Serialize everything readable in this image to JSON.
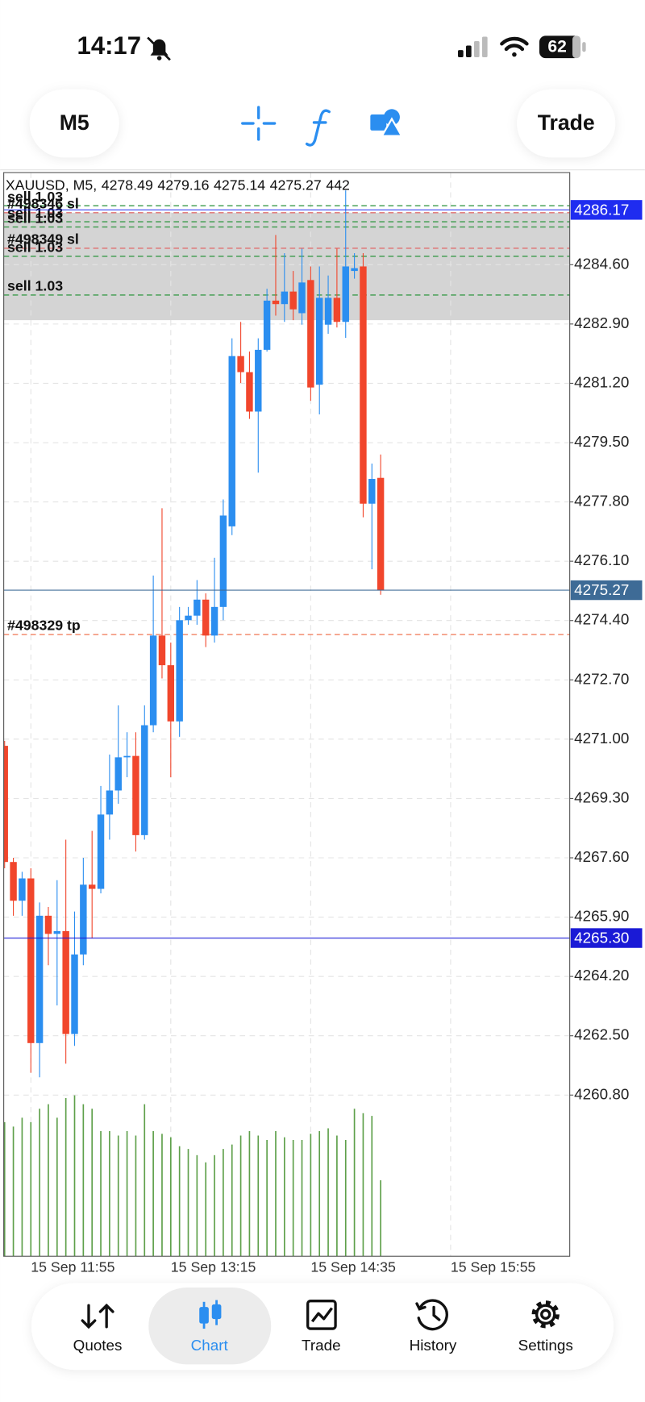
{
  "status_bar": {
    "time": "14:17",
    "battery": "62"
  },
  "toolbar": {
    "timeframe": "M5",
    "trade_button": "Trade"
  },
  "chart_data": {
    "type": "candlestick",
    "symbol": "XAUUSD, M5,",
    "categories": [
      null,
      null,
      null,
      "15 Sep 11:55",
      null,
      null,
      null,
      null,
      null,
      null,
      null,
      null,
      null,
      null,
      null,
      null,
      null,
      null,
      null,
      "15 Sep 13:15",
      null,
      null,
      null,
      null,
      null,
      null,
      null,
      null,
      null,
      null,
      null,
      null,
      null,
      null,
      null,
      "15 Sep 14:35",
      null,
      null,
      null,
      null,
      null,
      null,
      null,
      null,
      null,
      null,
      null,
      null,
      null,
      null,
      null,
      "15 Sep 15:55"
    ],
    "open": [
      4270.81,
      4267.48,
      4266.37,
      4267.01,
      4262.29,
      4265.94,
      4265.42,
      4265.5,
      4262.55,
      4264.83,
      4266.83,
      4266.71,
      4268.84,
      4269.53,
      4270.48,
      4270.52,
      4268.25,
      4271.4,
      4273.97,
      4273.12,
      4271.51,
      4274.41,
      4274.54,
      4275.0,
      4273.97,
      4274.79,
      4277.1,
      4281.98,
      4281.52,
      4280.39,
      4282.16,
      4283.57,
      4283.47,
      4283.83,
      4283.21,
      4284.16,
      4281.16,
      4282.88,
      4283.65,
      4282.96,
      4284.42,
      4284.55,
      4277.75,
      4278.49,
      null,
      null,
      null,
      null,
      null,
      null,
      null,
      null
    ],
    "high": [
      4270.95,
      4267.6,
      4267.2,
      4267.3,
      4266.32,
      4266.19,
      4266.96,
      4268.12,
      4266.06,
      4267.6,
      4268.37,
      4269.66,
      4270.56,
      4271.97,
      4271.2,
      4271.2,
      4271.97,
      4275.69,
      4277.62,
      4273.77,
      4274.79,
      4274.79,
      4275.56,
      4275.18,
      4276.2,
      4277.87,
      4282.49,
      4282.96,
      4282.11,
      4282.49,
      4283.91,
      4285.45,
      4284.93,
      4284.42,
      4285.06,
      4284.55,
      4284.55,
      4284.29,
      4285.06,
      4286.73,
      4284.93,
      4284.93,
      4278.9,
      4279.16,
      null,
      null,
      null,
      null,
      null,
      null,
      null,
      null
    ],
    "low": [
      4267.3,
      4265.94,
      4265.94,
      4261.44,
      4261.31,
      4264.52,
      4263.37,
      4261.7,
      4262.21,
      4264.52,
      4265.29,
      4266.58,
      4268.12,
      4269.15,
      4269.91,
      4267.78,
      4268.12,
      4271.2,
      4272.74,
      4269.91,
      4271.07,
      4274.28,
      4274.28,
      4273.64,
      4273.77,
      4274.41,
      4276.85,
      4281.21,
      4280.18,
      4278.64,
      4282.11,
      4283.14,
      4282.96,
      4283.01,
      4282.88,
      4280.7,
      4280.31,
      4282.62,
      4282.8,
      4282.5,
      4284.2,
      4277.36,
      4275.87,
      4275.14,
      null,
      null,
      null,
      null,
      null,
      null,
      null,
      null
    ],
    "close": [
      4267.48,
      4266.37,
      4267.01,
      4262.29,
      4265.94,
      4265.42,
      4265.5,
      4262.55,
      4264.83,
      4266.83,
      4266.71,
      4268.84,
      4269.53,
      4270.48,
      4270.52,
      4268.25,
      4271.4,
      4273.97,
      4273.12,
      4271.51,
      4274.41,
      4274.54,
      4275.0,
      4273.97,
      4274.79,
      4277.41,
      4281.98,
      4281.52,
      4280.39,
      4282.16,
      4283.57,
      4283.47,
      4283.83,
      4283.32,
      4284.09,
      4281.08,
      4283.65,
      4283.65,
      4282.96,
      4284.55,
      4284.5,
      4277.75,
      4278.46,
      4275.27,
      null,
      null,
      null,
      null,
      null,
      null,
      null,
      null
    ],
    "volume": [
      780,
      754,
      806,
      780,
      858,
      884,
      806,
      920,
      936,
      884,
      858,
      728,
      728,
      702,
      728,
      702,
      884,
      728,
      712,
      692,
      640,
      624,
      588,
      546,
      588,
      624,
      650,
      702,
      728,
      702,
      676,
      728,
      692,
      676,
      676,
      712,
      728,
      744,
      702,
      676,
      858,
      832,
      816,
      442,
      null,
      null,
      null,
      null,
      null,
      null,
      null,
      null
    ],
    "up_color": "#2b8ef0",
    "down_color": "#f1462c",
    "volume_color": "#5ea04a",
    "ylim": [
      4256.18,
      4287.24
    ],
    "yticks": [
      {
        "value": 4260.8,
        "label": "4260.80"
      },
      {
        "value": 4262.5,
        "label": "4262.50"
      },
      {
        "value": 4264.2,
        "label": "4264.20"
      },
      {
        "value": 4265.9,
        "label": "4265.90"
      },
      {
        "value": 4267.6,
        "label": "4267.60"
      },
      {
        "value": 4269.3,
        "label": "4269.30"
      },
      {
        "value": 4271.0,
        "label": "4271.00"
      },
      {
        "value": 4272.7,
        "label": "4272.70"
      },
      {
        "value": 4274.4,
        "label": "4274.40"
      },
      {
        "value": 4276.1,
        "label": "4276.10"
      },
      {
        "value": 4277.8,
        "label": "4277.80"
      },
      {
        "value": 4279.5,
        "label": "4279.50"
      },
      {
        "value": 4281.2,
        "label": "4281.20"
      },
      {
        "value": 4282.9,
        "label": "4282.90"
      },
      {
        "value": 4284.6,
        "label": "4284.60"
      }
    ],
    "grid": true,
    "zones": [
      {
        "from": 4283.01,
        "to": 4286.09,
        "color": "#d4d4d4"
      }
    ],
    "order_lines": [
      {
        "label": "sell 1.03",
        "value": 4286.29,
        "color": "#3a9a4a"
      },
      {
        "label": "#498346 sl",
        "value": 4286.09,
        "color": "#e07070"
      },
      {
        "label": "sell 1.03",
        "value": 4285.83,
        "color": "#3a9a4a"
      },
      {
        "label": "sell 1.03",
        "value": 4285.68,
        "color": "#3a9a4a"
      },
      {
        "label": "#498349 sl",
        "value": 4285.07,
        "color": "#e07070"
      },
      {
        "label": "sell 1.03",
        "value": 4284.84,
        "color": "#3a9a4a"
      },
      {
        "label": "sell 1.03",
        "value": 4283.73,
        "color": "#3a9a4a"
      },
      {
        "label": "#498329 tp",
        "value": 4274.0,
        "color": "#f08060"
      }
    ],
    "price_lines": [
      {
        "value": 4286.17,
        "color": "#1f2cf0"
      },
      {
        "value": 4275.27,
        "color": "#3e6b96"
      },
      {
        "value": 4265.3,
        "label": "4265.30",
        "color": "#1a1ad6"
      }
    ]
  },
  "tab_bar": {
    "tabs": [
      "Quotes",
      "Chart",
      "Trade",
      "History",
      "Settings"
    ]
  }
}
